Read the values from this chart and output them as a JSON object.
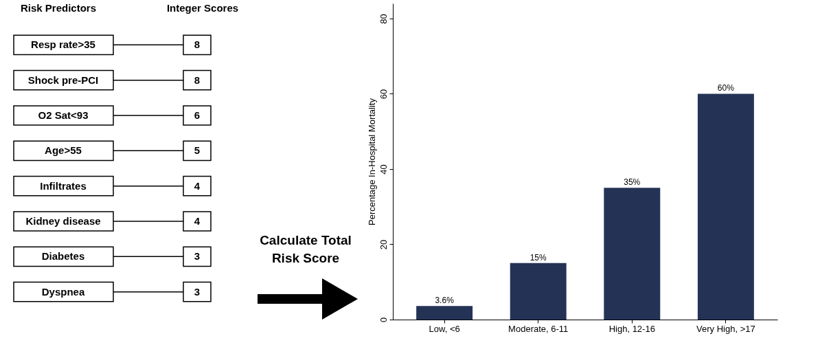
{
  "chart_data": [
    {
      "type": "other",
      "categories": [
        "Resp rate>35",
        "Shock pre-PCI",
        "O2 Sat<93",
        "Age>55",
        "Infiltrates",
        "Kidney disease",
        "Diabetes",
        "Dyspnea"
      ],
      "values": [
        8,
        8,
        6,
        5,
        4,
        4,
        3,
        3
      ],
      "data_labels": true,
      "annotations": [
        "Risk Predictors",
        "Integer Scores",
        "Calculate Total Risk Score"
      ]
    },
    {
      "type": "bar",
      "categories": [
        "Low, <6",
        "Moderate, 6-11",
        "High, 12-16",
        "Very High, >17"
      ],
      "values": [
        3.6,
        15,
        35,
        60
      ],
      "value_labels": [
        "3.6%",
        "15%",
        "35%",
        "60%"
      ],
      "color": "#243355",
      "ylabel": "Percentage In-Hospital Mortality",
      "ylim": [
        0,
        84
      ],
      "yticks": [
        0,
        20,
        40,
        60,
        80
      ],
      "grid": false
    }
  ]
}
